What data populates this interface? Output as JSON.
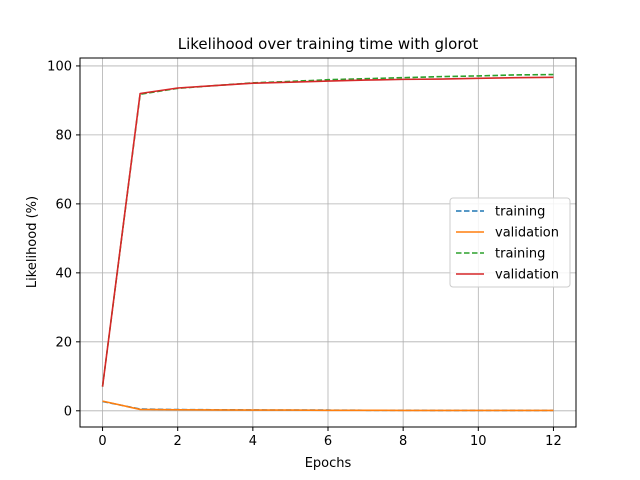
{
  "chart_data": {
    "type": "line",
    "title": "Likelihood over training time with glorot",
    "xlabel": "Epochs",
    "ylabel": "Likelihood (%)",
    "xlim": [
      -0.6,
      12.6
    ],
    "ylim": [
      -4.7,
      102.3
    ],
    "xticks": [
      0,
      2,
      4,
      6,
      8,
      10,
      12
    ],
    "yticks": [
      0,
      20,
      40,
      60,
      80,
      100
    ],
    "grid": true,
    "legend_position": "right",
    "x": [
      0,
      1,
      2,
      3,
      4,
      5,
      6,
      7,
      8,
      9,
      10,
      11,
      12
    ],
    "series": [
      {
        "name": "training",
        "color": "#1f77b4",
        "dash": "dashed",
        "values": [
          2.7,
          0.5,
          0.35,
          0.3,
          0.25,
          0.2,
          0.2,
          0.15,
          0.15,
          0.1,
          0.1,
          0.1,
          0.1
        ]
      },
      {
        "name": "validation",
        "color": "#ff7f0e",
        "dash": "solid",
        "values": [
          2.8,
          0.4,
          0.3,
          0.25,
          0.2,
          0.2,
          0.15,
          0.15,
          0.1,
          0.1,
          0.1,
          0.1,
          0.1
        ]
      },
      {
        "name": "training",
        "color": "#2ca02c",
        "dash": "dashed",
        "values": [
          7.0,
          91.8,
          93.5,
          94.3,
          95.1,
          95.5,
          96.0,
          96.3,
          96.6,
          96.9,
          97.1,
          97.4,
          97.5
        ]
      },
      {
        "name": "validation",
        "color": "#d62728",
        "dash": "solid",
        "values": [
          7.0,
          92.0,
          93.6,
          94.3,
          95.0,
          95.3,
          95.6,
          95.9,
          96.1,
          96.2,
          96.4,
          96.6,
          96.7
        ]
      }
    ]
  }
}
